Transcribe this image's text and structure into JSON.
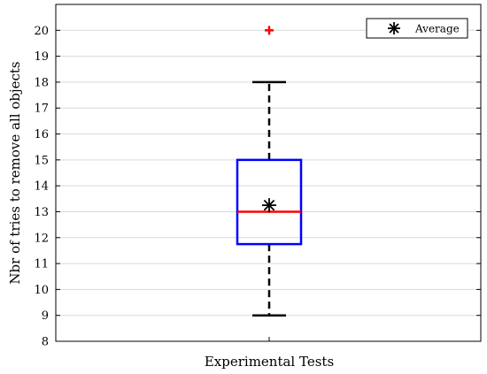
{
  "chart_data": {
    "type": "boxplot",
    "title": "",
    "xlabel": "Experimental Tests",
    "ylabel": "Nbr of tries to remove all objects",
    "ylim": [
      8,
      21
    ],
    "yticks": [
      8,
      9,
      10,
      11,
      12,
      13,
      14,
      15,
      16,
      17,
      18,
      19,
      20
    ],
    "grid": "horizontal",
    "legend": {
      "position": "top-right",
      "entries": [
        "Average"
      ]
    },
    "categories": [
      ""
    ],
    "boxes": [
      {
        "whisker_low": 9,
        "q1": 11.75,
        "median": 13,
        "q3": 15,
        "whisker_high": 18,
        "mean": 13.25,
        "outliers": [
          20
        ]
      }
    ],
    "colors": {
      "box": "#0000ff",
      "median": "#ff0000",
      "outlier": "#ff0000",
      "whisker": "#000000",
      "mean": "#000000",
      "grid": "#d9d9d9"
    }
  }
}
